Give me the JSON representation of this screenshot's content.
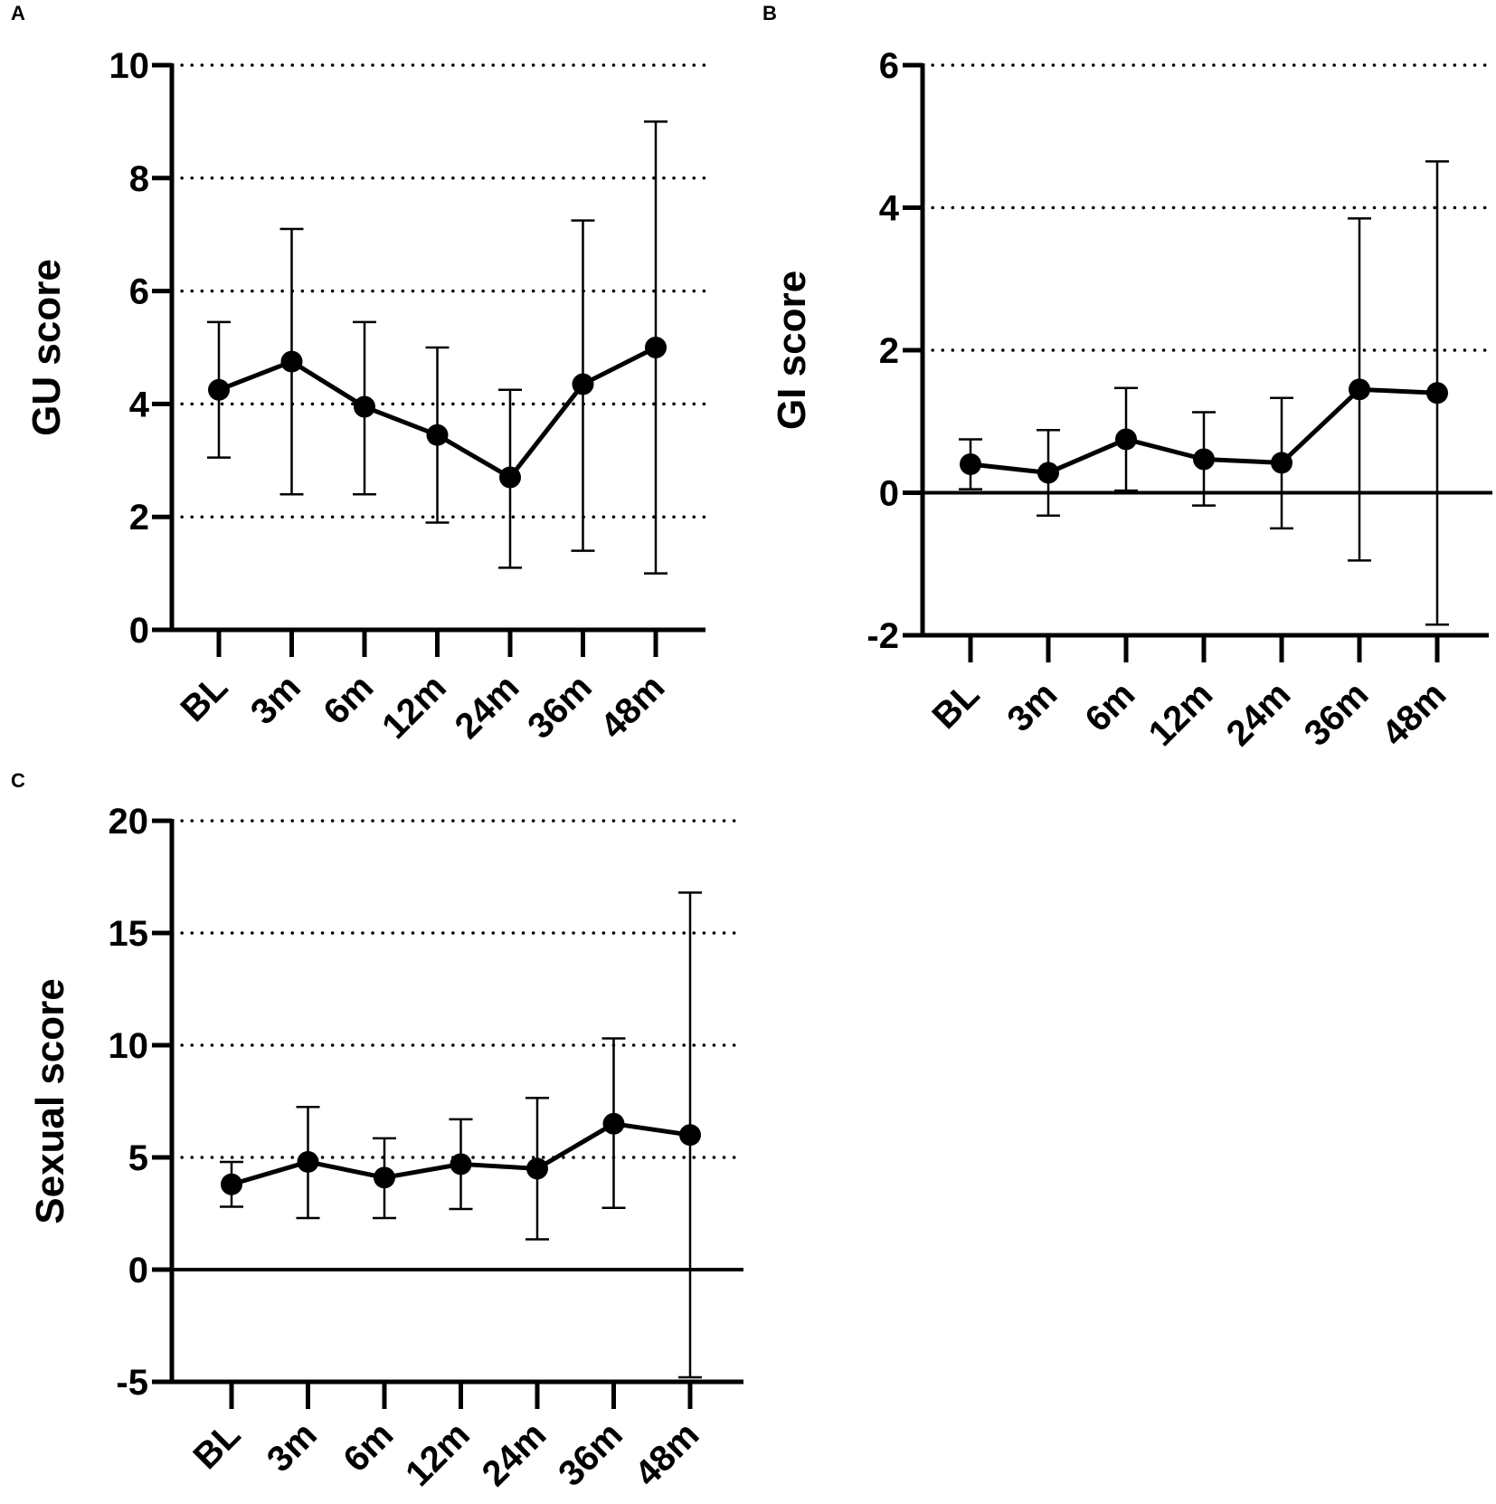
{
  "chart_data": [
    {
      "panel_label": "A",
      "type": "line",
      "ylabel": "GU score",
      "categories": [
        "BL",
        "3m",
        "6m",
        "12m",
        "24m",
        "36m",
        "48m"
      ],
      "values": [
        4.25,
        4.75,
        3.95,
        3.45,
        2.7,
        4.35,
        5.0
      ],
      "err_upper": [
        5.45,
        7.1,
        5.45,
        5.0,
        4.25,
        7.25,
        9.0
      ],
      "err_lower": [
        3.05,
        2.4,
        2.4,
        1.9,
        1.1,
        1.4,
        1.0
      ],
      "ylim": [
        0,
        10
      ],
      "yticks": [
        0,
        2,
        4,
        6,
        8,
        10
      ],
      "ytick_labels": [
        "0",
        "2",
        "4",
        "6",
        "8",
        "10"
      ],
      "dotted_grid": [
        2,
        4,
        6,
        8,
        10
      ],
      "solid_lines": [],
      "grid": true,
      "legend": "none"
    },
    {
      "panel_label": "B",
      "type": "line",
      "ylabel": "GI score",
      "categories": [
        "BL",
        "3m",
        "6m",
        "12m",
        "24m",
        "36m",
        "48m"
      ],
      "values": [
        0.4,
        0.28,
        0.75,
        0.47,
        0.42,
        1.45,
        1.4
      ],
      "err_upper": [
        0.75,
        0.88,
        1.47,
        1.13,
        1.33,
        3.85,
        4.65
      ],
      "err_lower": [
        0.05,
        -0.32,
        0.03,
        -0.18,
        -0.5,
        -0.95,
        -1.85
      ],
      "ylim": [
        -2,
        6
      ],
      "yticks": [
        -2,
        0,
        2,
        4,
        6
      ],
      "ytick_labels": [
        "-2",
        "0",
        "2",
        "4",
        "6"
      ],
      "dotted_grid": [
        2,
        4,
        6
      ],
      "solid_lines": [
        0
      ],
      "grid": true,
      "legend": "none"
    },
    {
      "panel_label": "C",
      "type": "line",
      "ylabel": "Sexual score",
      "categories": [
        "BL",
        "3m",
        "6m",
        "12m",
        "24m",
        "36m",
        "48m"
      ],
      "values": [
        3.8,
        4.8,
        4.1,
        4.7,
        4.5,
        6.5,
        6.0
      ],
      "err_upper": [
        4.8,
        7.25,
        5.85,
        6.7,
        7.65,
        10.3,
        16.8
      ],
      "err_lower": [
        2.8,
        2.3,
        2.3,
        2.7,
        1.35,
        2.75,
        -4.8
      ],
      "ylim": [
        -5,
        20
      ],
      "yticks": [
        -5,
        0,
        5,
        10,
        15,
        20
      ],
      "ytick_labels": [
        "-5",
        "0",
        "5",
        "10",
        "15",
        "20"
      ],
      "dotted_grid": [
        5,
        10,
        15,
        20
      ],
      "solid_lines": [
        0
      ],
      "grid": true,
      "legend": "none"
    }
  ]
}
